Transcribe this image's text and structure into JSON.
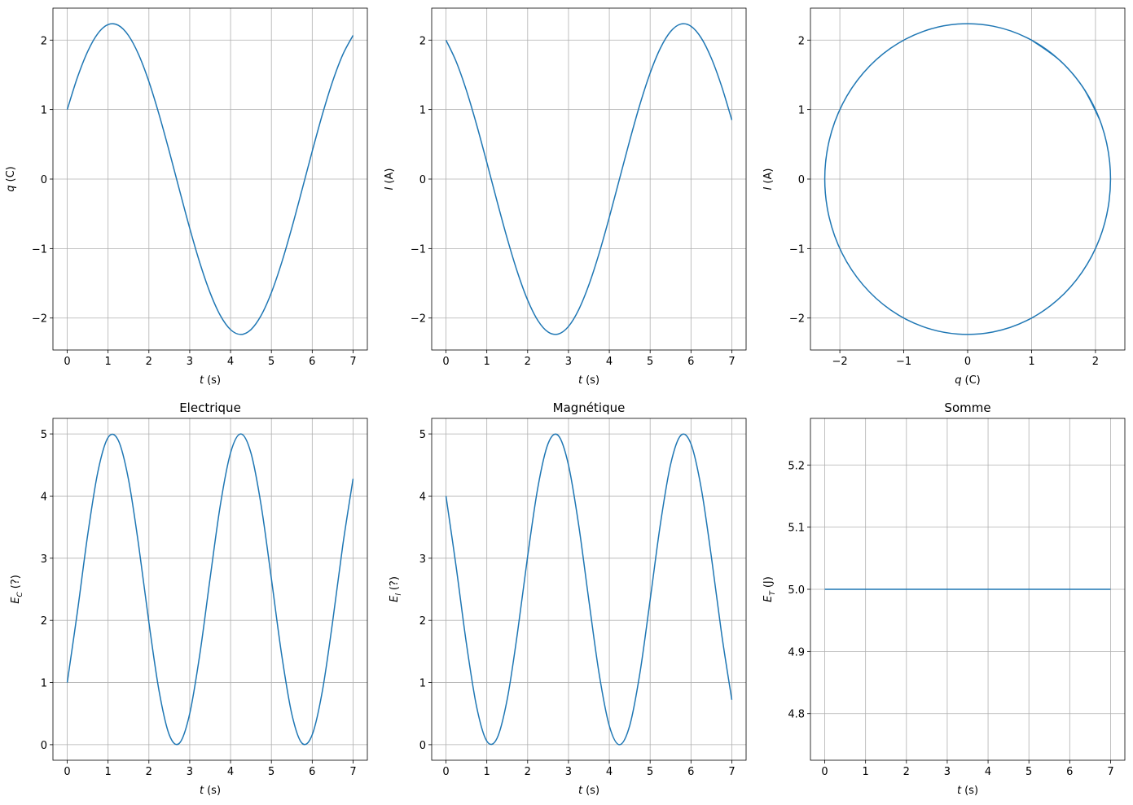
{
  "chart_data": [
    {
      "type": "line",
      "xlabel": {
        "var": "t",
        "unit": "(s)"
      },
      "ylabel": {
        "var": "q",
        "unit": "(C)"
      },
      "x": [
        0,
        0.25,
        0.5,
        0.75,
        1,
        1.25,
        1.5,
        1.75,
        2,
        2.25,
        2.5,
        2.75,
        3,
        3.25,
        3.5,
        3.75,
        4,
        4.25,
        4.5,
        4.75,
        5,
        5.25,
        5.5,
        5.75,
        6,
        6.25,
        6.5,
        6.75,
        7
      ],
      "series": [
        {
          "color": "#1f77b4",
          "values": [
            1,
            1.464,
            1.836,
            2.095,
            2.223,
            2.213,
            2.066,
            1.79,
            1.403,
            0.928,
            0.396,
            -0.161,
            -0.708,
            -1.211,
            -1.638,
            -1.964,
            -2.167,
            -2.236,
            -2.166,
            -1.961,
            -1.634,
            -1.206,
            -0.702,
            -0.155,
            0.401,
            0.933,
            1.407,
            1.793,
            2.068
          ]
        }
      ],
      "xlim": [
        -0.35,
        7.35
      ],
      "xticks": [
        0,
        1,
        2,
        3,
        4,
        5,
        6,
        7
      ],
      "ylim": [
        -2.46,
        2.46
      ],
      "yticks": [
        {
          "value": -2,
          "label": "−2"
        },
        {
          "value": -1,
          "label": "−1"
        },
        0,
        1,
        2
      ],
      "grid": true
    },
    {
      "type": "line",
      "xlabel": {
        "var": "t",
        "unit": "(s)"
      },
      "ylabel": {
        "var": "I",
        "unit": "(A)"
      },
      "x": [
        0,
        0.25,
        0.5,
        0.75,
        1,
        1.25,
        1.5,
        1.75,
        2,
        2.25,
        2.5,
        2.75,
        3,
        3.25,
        3.5,
        3.75,
        4,
        4.25,
        4.5,
        4.75,
        5,
        5.25,
        5.5,
        5.75,
        6,
        6.25,
        6.5,
        6.75,
        7
      ],
      "series": [
        {
          "color": "#1f77b4",
          "values": [
            2,
            1.69,
            1.276,
            0.782,
            0.239,
            -0.318,
            -0.856,
            -1.34,
            -1.742,
            -2.035,
            -2.201,
            -2.23,
            -2.121,
            -1.88,
            -1.522,
            -1.07,
            -0.55,
            0.003,
            0.556,
            1.075,
            1.526,
            1.883,
            2.123,
            2.231,
            2.2,
            2.032,
            1.738,
            1.336,
            0.851
          ]
        }
      ],
      "xlim": [
        -0.35,
        7.35
      ],
      "xticks": [
        0,
        1,
        2,
        3,
        4,
        5,
        6,
        7
      ],
      "ylim": [
        -2.46,
        2.46
      ],
      "yticks": [
        {
          "value": -2,
          "label": "−2"
        },
        {
          "value": -1,
          "label": "−1"
        },
        0,
        1,
        2
      ],
      "grid": true
    },
    {
      "type": "line",
      "xlabel": {
        "var": "q",
        "unit": "(C)"
      },
      "ylabel": {
        "var": "I",
        "unit": "(A)"
      },
      "x": [
        1,
        1.464,
        1.836,
        2.095,
        2.223,
        2.213,
        2.066,
        1.79,
        1.403,
        0.928,
        0.396,
        -0.161,
        -0.708,
        -1.211,
        -1.638,
        -1.964,
        -2.167,
        -2.236,
        -2.166,
        -1.961,
        -1.634,
        -1.206,
        -0.702,
        -0.155,
        0.401,
        0.933,
        1.407,
        1.793,
        2.068
      ],
      "series": [
        {
          "color": "#1f77b4",
          "values": [
            2,
            1.69,
            1.276,
            0.782,
            0.239,
            -0.318,
            -0.856,
            -1.34,
            -1.742,
            -2.035,
            -2.201,
            -2.23,
            -2.121,
            -1.88,
            -1.522,
            -1.07,
            -0.55,
            0.003,
            0.556,
            1.075,
            1.526,
            1.883,
            2.123,
            2.231,
            2.2,
            2.032,
            1.738,
            1.336,
            0.851
          ]
        }
      ],
      "xlim": [
        -2.46,
        2.46
      ],
      "xticks": [
        {
          "value": -2,
          "label": "−2"
        },
        {
          "value": -1,
          "label": "−1"
        },
        0,
        1,
        2
      ],
      "ylim": [
        -2.46,
        2.46
      ],
      "yticks": [
        {
          "value": -2,
          "label": "−2"
        },
        {
          "value": -1,
          "label": "−1"
        },
        0,
        1,
        2
      ],
      "grid": true
    },
    {
      "type": "line",
      "title": "Electrique",
      "xlabel": {
        "var": "t",
        "unit": "(s)"
      },
      "ylabel": {
        "var": "E",
        "sub": "C",
        "unit": "(?)"
      },
      "x": [
        0,
        0.25,
        0.5,
        0.75,
        1,
        1.25,
        1.5,
        1.75,
        2,
        2.25,
        2.5,
        2.75,
        3,
        3.25,
        3.5,
        3.75,
        4,
        4.25,
        4.5,
        4.75,
        5,
        5.25,
        5.5,
        5.75,
        6,
        6.25,
        6.5,
        6.75,
        7
      ],
      "series": [
        {
          "color": "#1f77b4",
          "values": [
            1,
            2.143,
            3.371,
            4.389,
            4.942,
            4.897,
            4.268,
            3.204,
            1.968,
            0.861,
            0.157,
            0.026,
            0.501,
            1.467,
            2.683,
            3.857,
            4.696,
            5.0,
            4.692,
            3.846,
            2.67,
            1.454,
            0.493,
            0.024,
            0.161,
            0.87,
            1.98,
            3.215,
            4.277
          ]
        }
      ],
      "xlim": [
        -0.35,
        7.35
      ],
      "xticks": [
        0,
        1,
        2,
        3,
        4,
        5,
        6,
        7
      ],
      "ylim": [
        -0.25,
        5.25
      ],
      "yticks": [
        0,
        1,
        2,
        3,
        4,
        5
      ],
      "grid": true
    },
    {
      "type": "line",
      "title": "Magnétique",
      "xlabel": {
        "var": "t",
        "unit": "(s)"
      },
      "ylabel": {
        "var": "E",
        "sub": "l",
        "unit": "(?)"
      },
      "x": [
        0,
        0.25,
        0.5,
        0.75,
        1,
        1.25,
        1.5,
        1.75,
        2,
        2.25,
        2.5,
        2.75,
        3,
        3.25,
        3.5,
        3.75,
        4,
        4.25,
        4.5,
        4.75,
        5,
        5.25,
        5.5,
        5.75,
        6,
        6.25,
        6.5,
        6.75,
        7
      ],
      "series": [
        {
          "color": "#1f77b4",
          "values": [
            4,
            2.857,
            1.629,
            0.611,
            0.058,
            0.103,
            0.732,
            1.796,
            3.032,
            4.139,
            4.843,
            4.974,
            4.499,
            3.533,
            2.317,
            1.143,
            0.304,
            0.0,
            0.308,
            1.154,
            2.33,
            3.546,
            4.507,
            4.976,
            4.839,
            4.13,
            3.02,
            1.785,
            0.723
          ]
        }
      ],
      "xlim": [
        -0.35,
        7.35
      ],
      "xticks": [
        0,
        1,
        2,
        3,
        4,
        5,
        6,
        7
      ],
      "ylim": [
        -0.25,
        5.25
      ],
      "yticks": [
        0,
        1,
        2,
        3,
        4,
        5
      ],
      "grid": true
    },
    {
      "type": "line",
      "title": "Somme",
      "xlabel": {
        "var": "t",
        "unit": "(s)"
      },
      "ylabel": {
        "var": "E",
        "sub": "T",
        "unit": "(J)"
      },
      "x": [
        0,
        0.25,
        0.5,
        0.75,
        1,
        1.25,
        1.5,
        1.75,
        2,
        2.25,
        2.5,
        2.75,
        3,
        3.25,
        3.5,
        3.75,
        4,
        4.25,
        4.5,
        4.75,
        5,
        5.25,
        5.5,
        5.75,
        6,
        6.25,
        6.5,
        6.75,
        7
      ],
      "series": [
        {
          "color": "#1f77b4",
          "values": [
            5,
            5,
            5,
            5,
            5,
            5,
            5,
            5,
            5,
            5,
            5,
            5,
            5,
            5,
            5,
            5,
            5,
            5,
            5,
            5,
            5,
            5,
            5,
            5,
            5,
            5,
            5,
            5,
            5
          ]
        }
      ],
      "xlim": [
        -0.35,
        7.35
      ],
      "xticks": [
        0,
        1,
        2,
        3,
        4,
        5,
        6,
        7
      ],
      "ylim": [
        4.725,
        5.275
      ],
      "yticks": [
        4.8,
        4.9,
        {
          "value": 5.0,
          "label": "5.0"
        },
        5.1,
        5.2
      ],
      "grid": true
    }
  ]
}
